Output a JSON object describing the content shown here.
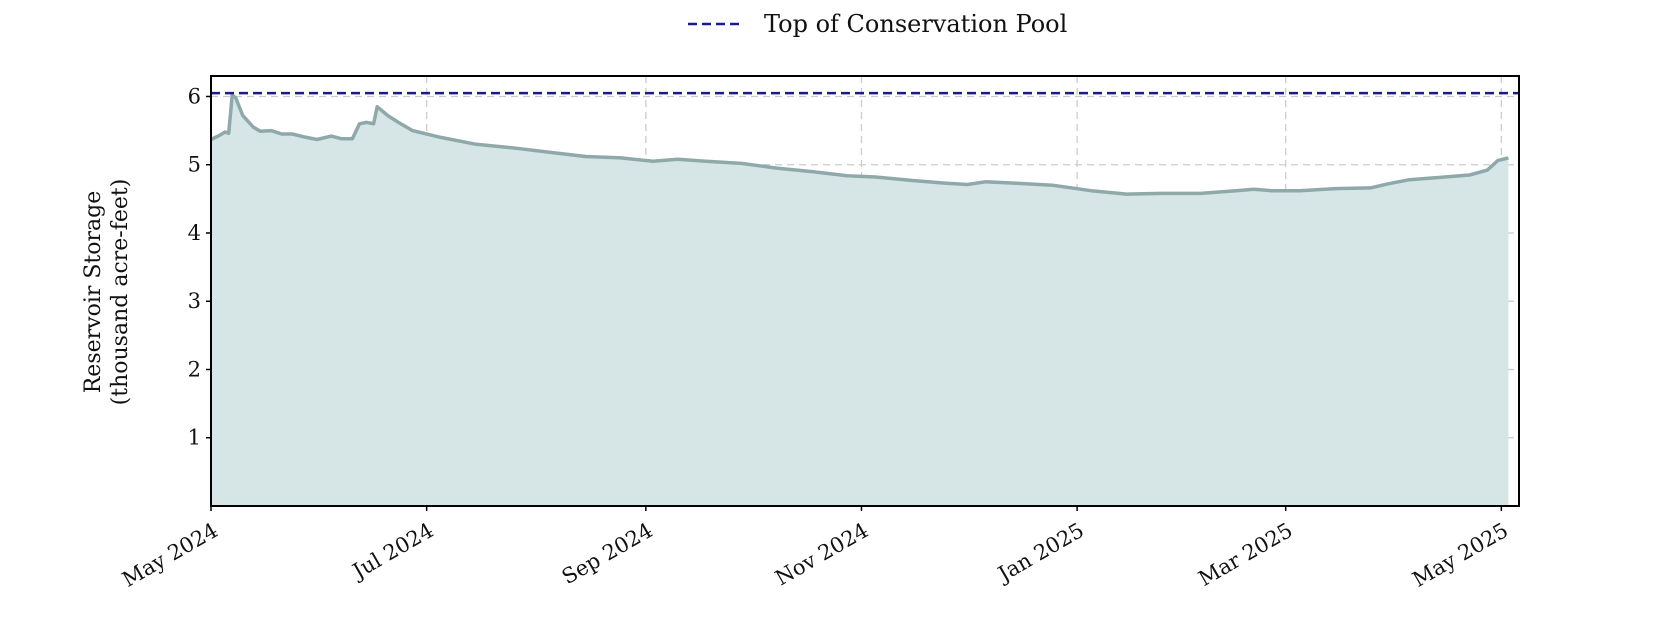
{
  "chart_data": {
    "type": "area",
    "title": "",
    "xlabel": "",
    "ylabel_line1": "Reservoir Storage",
    "ylabel_line2": "(thousand acre-feet)",
    "ylim": [
      0,
      6.3
    ],
    "xlim": [
      "2024-05-01",
      "2025-05-06"
    ],
    "grid": true,
    "legend_position": "top-center",
    "x_ticks": [
      {
        "date": "2024-05-01",
        "label": "May 2024"
      },
      {
        "date": "2024-07-01",
        "label": "Jul 2024"
      },
      {
        "date": "2024-09-01",
        "label": "Sep 2024"
      },
      {
        "date": "2024-11-01",
        "label": "Nov 2024"
      },
      {
        "date": "2025-01-01",
        "label": "Jan 2025"
      },
      {
        "date": "2025-03-01",
        "label": "Mar 2025"
      },
      {
        "date": "2025-05-01",
        "label": "May 2025"
      }
    ],
    "y_ticks": [
      {
        "value": 1,
        "label": "1"
      },
      {
        "value": 2,
        "label": "2"
      },
      {
        "value": 3,
        "label": "3"
      },
      {
        "value": 4,
        "label": "4"
      },
      {
        "value": 5,
        "label": "5"
      },
      {
        "value": 6,
        "label": "6"
      }
    ],
    "reference_line": {
      "name": "Top of Conservation Pool",
      "value": 6.05,
      "color": "#1a1a8c"
    },
    "series": [
      {
        "color": "#8fa9ab",
        "fill_color": "#d6e5e6",
        "points": [
          [
            "2024-05-01",
            5.37
          ],
          [
            "2024-05-03",
            5.42
          ],
          [
            "2024-05-05",
            5.48
          ],
          [
            "2024-05-06",
            5.46
          ],
          [
            "2024-05-07",
            6.02
          ],
          [
            "2024-05-08",
            5.98
          ],
          [
            "2024-05-10",
            5.72
          ],
          [
            "2024-05-13",
            5.55
          ],
          [
            "2024-05-15",
            5.49
          ],
          [
            "2024-05-18",
            5.5
          ],
          [
            "2024-05-21",
            5.45
          ],
          [
            "2024-05-24",
            5.45
          ],
          [
            "2024-05-28",
            5.4
          ],
          [
            "2024-05-31",
            5.37
          ],
          [
            "2024-06-04",
            5.42
          ],
          [
            "2024-06-07",
            5.38
          ],
          [
            "2024-06-10",
            5.38
          ],
          [
            "2024-06-12",
            5.6
          ],
          [
            "2024-06-14",
            5.62
          ],
          [
            "2024-06-16",
            5.6
          ],
          [
            "2024-06-17",
            5.85
          ],
          [
            "2024-06-20",
            5.72
          ],
          [
            "2024-06-23",
            5.62
          ],
          [
            "2024-06-27",
            5.5
          ],
          [
            "2024-07-05",
            5.4
          ],
          [
            "2024-07-15",
            5.3
          ],
          [
            "2024-07-25",
            5.25
          ],
          [
            "2024-08-05",
            5.18
          ],
          [
            "2024-08-15",
            5.12
          ],
          [
            "2024-08-25",
            5.1
          ],
          [
            "2024-09-03",
            5.05
          ],
          [
            "2024-09-10",
            5.08
          ],
          [
            "2024-09-18",
            5.05
          ],
          [
            "2024-09-28",
            5.02
          ],
          [
            "2024-10-08",
            4.95
          ],
          [
            "2024-10-18",
            4.9
          ],
          [
            "2024-10-28",
            4.84
          ],
          [
            "2024-11-05",
            4.82
          ],
          [
            "2024-11-15",
            4.77
          ],
          [
            "2024-11-25",
            4.73
          ],
          [
            "2024-12-01",
            4.71
          ],
          [
            "2024-12-06",
            4.75
          ],
          [
            "2024-12-15",
            4.73
          ],
          [
            "2024-12-25",
            4.7
          ],
          [
            "2025-01-05",
            4.62
          ],
          [
            "2025-01-15",
            4.57
          ],
          [
            "2025-01-25",
            4.58
          ],
          [
            "2025-02-05",
            4.58
          ],
          [
            "2025-02-15",
            4.62
          ],
          [
            "2025-02-20",
            4.64
          ],
          [
            "2025-02-25",
            4.62
          ],
          [
            "2025-03-05",
            4.62
          ],
          [
            "2025-03-15",
            4.65
          ],
          [
            "2025-03-25",
            4.66
          ],
          [
            "2025-03-30",
            4.72
          ],
          [
            "2025-04-05",
            4.78
          ],
          [
            "2025-04-15",
            4.82
          ],
          [
            "2025-04-22",
            4.85
          ],
          [
            "2025-04-27",
            4.92
          ],
          [
            "2025-04-30",
            5.06
          ],
          [
            "2025-05-03",
            5.1
          ]
        ]
      }
    ]
  }
}
